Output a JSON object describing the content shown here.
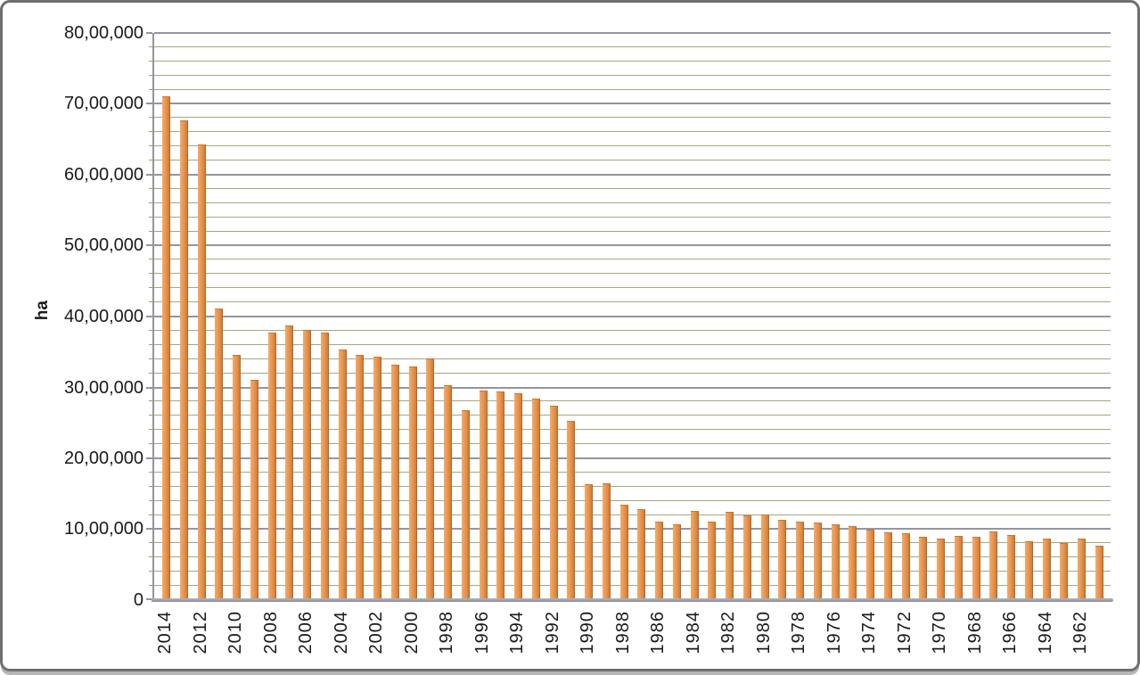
{
  "frame": {
    "background": "#ffffff",
    "border_color": "#6f6f6f",
    "shadow_color": "#b6b6b6"
  },
  "chart_data": {
    "type": "bar",
    "title": "",
    "xlabel": "",
    "ylabel": "ha",
    "ylim": [
      0,
      8000000
    ],
    "y_major_step": 1000000,
    "y_minor_step": 200000,
    "grid": "major-gray-minor-olive",
    "legend_position": "none",
    "x_label_every": 2,
    "y_tick_labels": [
      "80,00,000",
      "70,00,000",
      "60,00,000",
      "50,00,000",
      "40,00,000",
      "30,00,000",
      "20,00,000",
      "10,00,000",
      "0"
    ],
    "categories": [
      "2014",
      "2013",
      "2012",
      "2011",
      "2010",
      "2009",
      "2008",
      "2007",
      "2006",
      "2005",
      "2004",
      "2003",
      "2002",
      "2001",
      "2000",
      "1999",
      "1998",
      "1997",
      "1996",
      "1995",
      "1994",
      "1993",
      "1992",
      "1991",
      "1990",
      "1989",
      "1988",
      "1987",
      "1986",
      "1985",
      "1984",
      "1983",
      "1982",
      "1981",
      "1980",
      "1979",
      "1978",
      "1977",
      "1976",
      "1975",
      "1974",
      "1973",
      "1972",
      "1971",
      "1970",
      "1969",
      "1968",
      "1967",
      "1966",
      "1965",
      "1964",
      "1963",
      "1962",
      "1961"
    ],
    "values": [
      7100000,
      6760000,
      6420000,
      4100000,
      3450000,
      3100000,
      3760000,
      3860000,
      3800000,
      3760000,
      3520000,
      3450000,
      3420000,
      3310000,
      3280000,
      3400000,
      3020000,
      2670000,
      2940000,
      2930000,
      2910000,
      2830000,
      2730000,
      2520000,
      1620000,
      1630000,
      1330000,
      1270000,
      1090000,
      1060000,
      1240000,
      1090000,
      1230000,
      1180000,
      1190000,
      1120000,
      1090000,
      1080000,
      1060000,
      1030000,
      980000,
      940000,
      930000,
      880000,
      860000,
      890000,
      880000,
      950000,
      900000,
      820000,
      850000,
      790000,
      850000,
      760000
    ],
    "colors": {
      "bar": "#e8934d",
      "bar_light": "#f3ab6c",
      "bar_dark": "#d07c35",
      "grid_major": "#94959f",
      "grid_minor": "#a9a67b",
      "axis": "#95959d",
      "text": "#1a1a1a"
    }
  }
}
